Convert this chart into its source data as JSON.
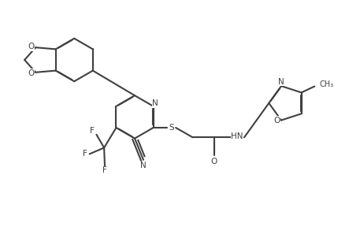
{
  "bg_color": "#ffffff",
  "line_color": "#404040",
  "line_width": 1.5,
  "figsize": [
    4.43,
    2.88
  ],
  "dpi": 100,
  "xlim": [
    0,
    10
  ],
  "ylim": [
    0,
    6.5
  ]
}
